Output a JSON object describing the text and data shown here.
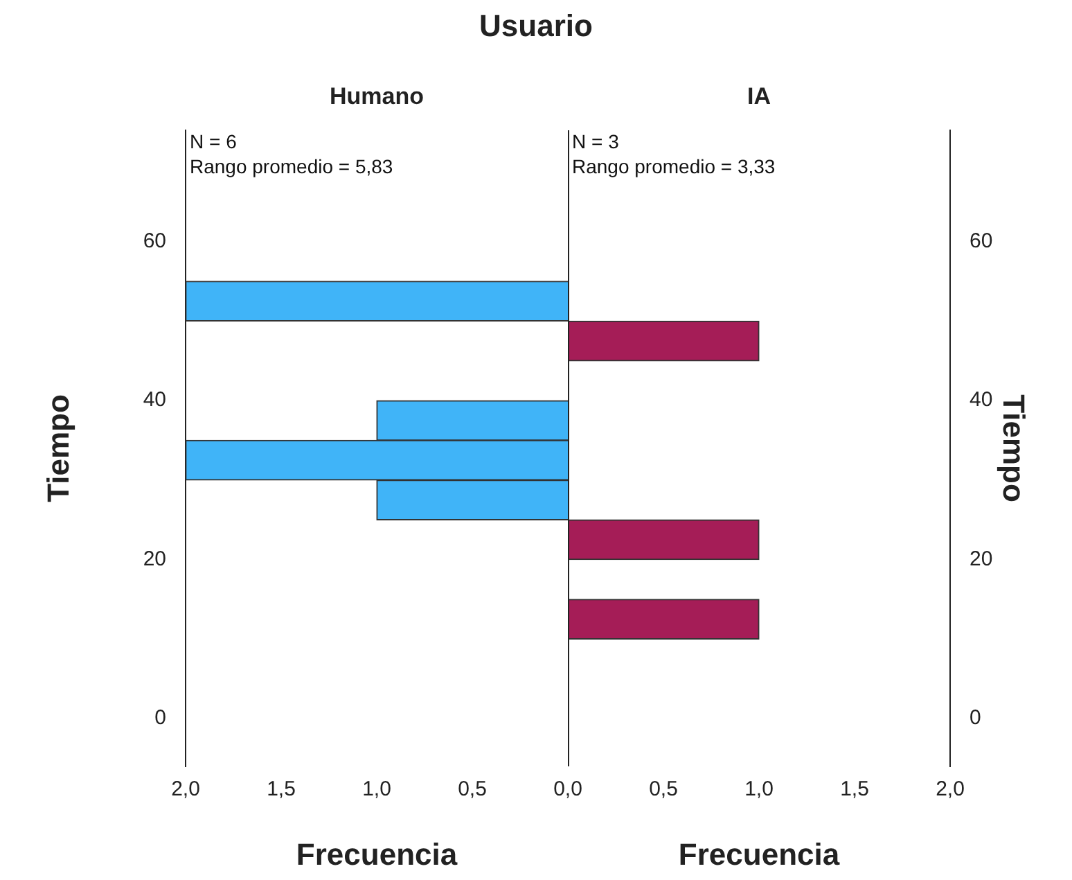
{
  "chart_data": [
    {
      "type": "histogram",
      "title": "Usuario",
      "subtitle": "Humano",
      "orientation": "horizontal",
      "legend": false,
      "grid": false,
      "bins": [
        25,
        30,
        35,
        40,
        45,
        50,
        55
      ],
      "values": [
        1,
        2,
        1,
        0,
        0,
        2
      ],
      "color": "#40b4f8",
      "xlim": [
        2,
        0
      ],
      "xticks": [
        {
          "value": 2,
          "label": "2,0"
        },
        {
          "value": 1.5,
          "label": "1,5"
        },
        {
          "value": 1,
          "label": "1,0"
        },
        {
          "value": 0.5,
          "label": "0,5"
        },
        {
          "value": 0,
          "label": "0,0"
        }
      ],
      "ylim": [
        -6,
        74
      ],
      "yticks": [
        0,
        20,
        40,
        60
      ],
      "xlabel": "Frecuencia",
      "ylabel": "Tiempo",
      "annotations": [
        "N = 6",
        "Rango promedio = 5,83"
      ]
    },
    {
      "type": "histogram",
      "subtitle": "IA",
      "orientation": "horizontal",
      "legend": false,
      "grid": false,
      "bins": [
        10,
        15,
        20,
        25,
        30,
        35,
        40,
        45,
        50
      ],
      "values": [
        1,
        0,
        1,
        0,
        0,
        0,
        0,
        1
      ],
      "color": "#a51d57",
      "xlim": [
        0,
        2
      ],
      "xticks": [
        {
          "value": 0.5,
          "label": "0,5"
        },
        {
          "value": 1,
          "label": "1,0"
        },
        {
          "value": 1.5,
          "label": "1,5"
        },
        {
          "value": 2,
          "label": "2,0"
        }
      ],
      "ylim": [
        -6,
        74
      ],
      "yticks": [
        0,
        20,
        40,
        60
      ],
      "xlabel": "Frecuencia",
      "ylabel": "Tiempo",
      "annotations": [
        "N = 3",
        "Rango promedio = 3,33"
      ]
    }
  ]
}
